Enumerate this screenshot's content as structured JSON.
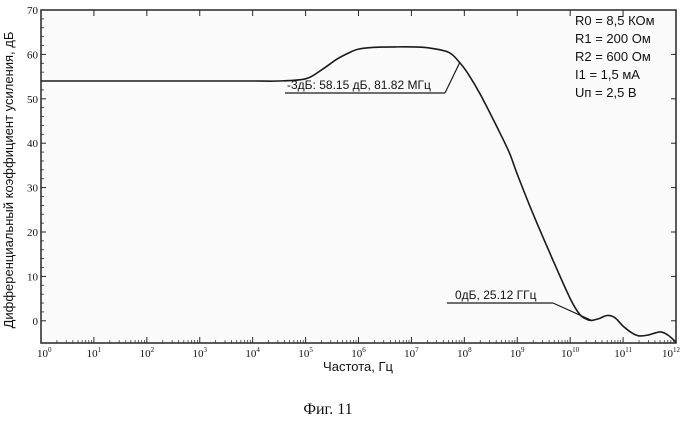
{
  "chart_data": {
    "type": "line",
    "title": "",
    "xlabel": "Частота, Гц",
    "ylabel": "Дифференциальный коэффициент усиления, дБ",
    "x_scale": "log",
    "xlim": [
      1,
      1000000000000
    ],
    "ylim": [
      -5,
      70
    ],
    "x_ticks": [
      1,
      10,
      100,
      1000,
      10000,
      100000,
      1000000,
      10000000,
      100000000,
      1000000000,
      10000000000,
      100000000000,
      1000000000000
    ],
    "x_tick_labels": [
      {
        "base": "10",
        "exp": "0"
      },
      {
        "base": "10",
        "exp": "1"
      },
      {
        "base": "10",
        "exp": "2"
      },
      {
        "base": "10",
        "exp": "3"
      },
      {
        "base": "10",
        "exp": "4"
      },
      {
        "base": "10",
        "exp": "5"
      },
      {
        "base": "10",
        "exp": "6"
      },
      {
        "base": "10",
        "exp": "7"
      },
      {
        "base": "10",
        "exp": "8"
      },
      {
        "base": "10",
        "exp": "9"
      },
      {
        "base": "10",
        "exp": "10"
      },
      {
        "base": "10",
        "exp": "11"
      },
      {
        "base": "10",
        "exp": "12"
      }
    ],
    "y_ticks": [
      0,
      10,
      20,
      30,
      40,
      50,
      60,
      70
    ],
    "y_tick_labels": [
      "0",
      "10",
      "20",
      "30",
      "40",
      "50",
      "60",
      "70"
    ],
    "grid": false,
    "series": [
      {
        "color": "#1a1a1a",
        "x": [
          1,
          10,
          100,
          1000,
          10000,
          30000,
          100000,
          200000,
          400000,
          700000,
          1000000,
          2000000,
          5000000,
          10000000,
          20000000,
          50000000,
          81820000,
          120000000,
          200000000,
          400000000,
          700000000,
          1000000000,
          2000000000,
          5000000000,
          10000000000,
          15000000000,
          20000000000,
          25120000000,
          35000000000,
          50000000000,
          70000000000,
          100000000000,
          150000000000,
          200000000000,
          300000000000,
          500000000000,
          700000000000,
          1000000000000
        ],
        "y": [
          54,
          54,
          54,
          54,
          54,
          54,
          54.5,
          56.5,
          59,
          60.5,
          61.2,
          61.6,
          61.7,
          61.7,
          61.5,
          60.5,
          58.15,
          55.5,
          51,
          44,
          38,
          33,
          24,
          13,
          5,
          1.5,
          0.4,
          0.1,
          0.5,
          1.2,
          0.7,
          -1.2,
          -2.8,
          -3.4,
          -3.2,
          -2.5,
          -3.2,
          -4.8
        ]
      }
    ],
    "annotations": [
      {
        "label": "-3дБ: 58.15 дБ, 81.82 МГц",
        "x": 81820000,
        "y": 58.15
      },
      {
        "label": "0дБ, 25.12 ГГц",
        "x": 25120000000,
        "y": 0.1
      }
    ],
    "parameters": [
      "R0 = 8,5 КОм",
      "R1 = 200 Ом",
      "R2 = 600 Ом",
      "I1 = 1,5 мА",
      "Uп = 2,5 В"
    ],
    "caption": "Фиг. 11"
  }
}
